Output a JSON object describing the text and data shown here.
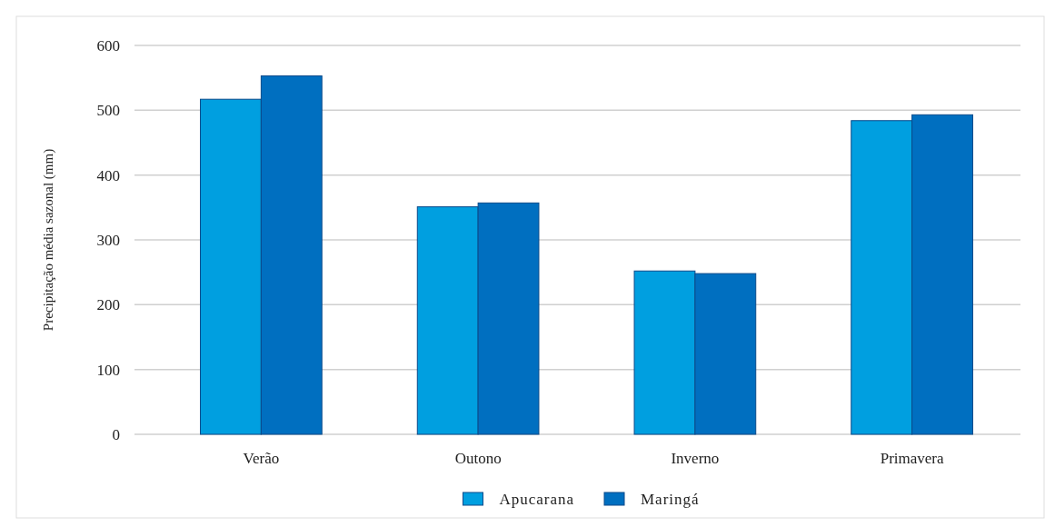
{
  "chart_data": {
    "type": "bar",
    "ylabel": "Precipitação média sazonal (mm)",
    "categories": [
      "Verão",
      "Outono",
      "Inverno",
      "Primavera"
    ],
    "series": [
      {
        "name": "Apucarana",
        "color": "#009fe0",
        "values": [
          517,
          351,
          252,
          484
        ]
      },
      {
        "name": "Maringá",
        "color": "#006fc0",
        "values": [
          553,
          357,
          248,
          493
        ]
      }
    ],
    "ylim": [
      0,
      600
    ],
    "yticks": [
      0,
      100,
      200,
      300,
      400,
      500,
      600
    ],
    "grid": "y",
    "legend": "bottom"
  }
}
